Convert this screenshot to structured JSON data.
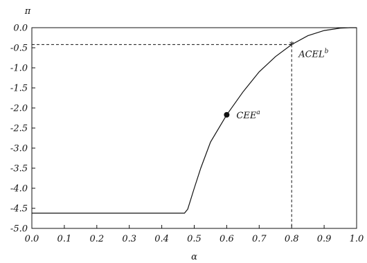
{
  "chart_data": {
    "type": "line",
    "xlabel": "α",
    "ylabel": "π",
    "xlim": [
      0.0,
      1.0
    ],
    "ylim": [
      -5.0,
      0.0
    ],
    "x_ticks": [
      "0.0",
      "0.1",
      "0.2",
      "0.3",
      "0.4",
      "0.5",
      "0.6",
      "0.7",
      "0.8",
      "0.9",
      "1.0"
    ],
    "y_ticks": [
      "0.0",
      "-0.5",
      "-1.0",
      "-1.5",
      "-2.0",
      "-2.5",
      "-3.0",
      "-3.5",
      "-4.0",
      "-4.5",
      "-5.0"
    ],
    "grid": false,
    "series": [
      {
        "x": [
          0.0,
          0.47,
          0.48,
          0.5,
          0.52,
          0.55,
          0.6,
          0.65,
          0.7,
          0.75,
          0.8,
          0.85,
          0.9,
          0.95,
          0.98,
          1.0
        ],
        "y": [
          -4.62,
          -4.62,
          -4.52,
          -4.0,
          -3.5,
          -2.85,
          -2.17,
          -1.6,
          -1.1,
          -0.72,
          -0.42,
          -0.2,
          -0.07,
          -0.01,
          0.0,
          0.0
        ]
      }
    ],
    "points": [
      {
        "x": 0.6,
        "y": -2.17,
        "marker": "dot",
        "label": "CEE",
        "sup": "a"
      },
      {
        "x": 0.8,
        "y": -0.42,
        "marker": "star",
        "label": "ACEL",
        "sup": "b"
      }
    ],
    "reference_lines": [
      {
        "from": [
          0.0,
          -0.42
        ],
        "to": [
          0.8,
          -0.42
        ],
        "style": "dashed"
      },
      {
        "from": [
          0.8,
          -0.42
        ],
        "to": [
          0.8,
          -5.0
        ],
        "style": "dashed"
      }
    ]
  }
}
